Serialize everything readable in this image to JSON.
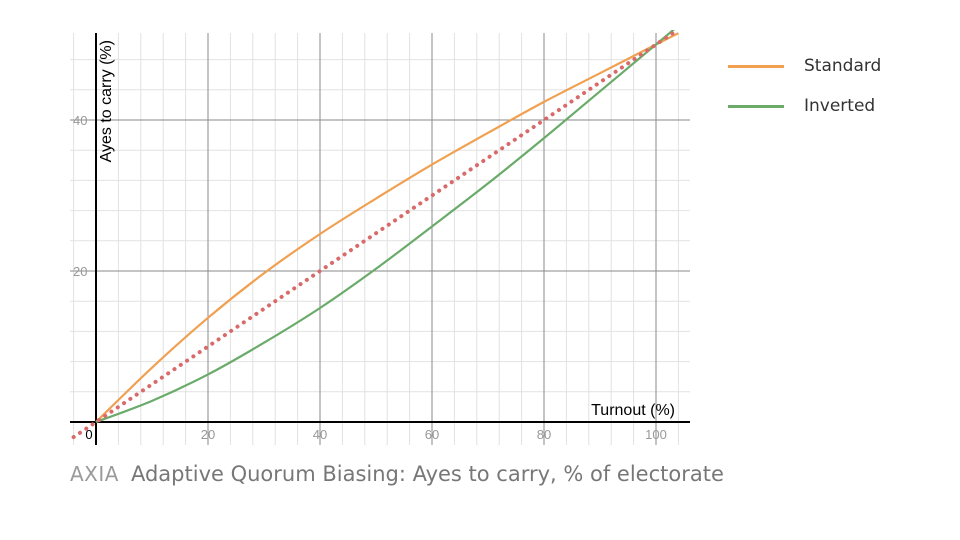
{
  "chart_data": {
    "type": "line",
    "xlabel": "Turnout (%)",
    "ylabel": "Ayes to carry (%)",
    "xlim": [
      -4,
      105
    ],
    "ylim": [
      0,
      50
    ],
    "x_ticks": [
      0,
      20,
      40,
      60,
      80,
      100
    ],
    "y_ticks": [
      20,
      40
    ],
    "x_tick_labels": [
      "0",
      "20",
      "40",
      "60",
      "80",
      "100"
    ],
    "y_tick_labels": [
      "20",
      "40"
    ],
    "grid": true,
    "legend_position": "top-right",
    "series": [
      {
        "name": "Standard",
        "color": "#f0a050",
        "style": "solid",
        "x": [
          0,
          10,
          20,
          30,
          40,
          50,
          60,
          70,
          80,
          90,
          100,
          104
        ],
        "y": [
          0,
          7.2,
          13.8,
          19.7,
          24.9,
          29.6,
          34.1,
          38.3,
          42.4,
          46.2,
          50.0,
          51.5
        ]
      },
      {
        "name": "Inverted",
        "color": "#6aab6a",
        "style": "solid",
        "x": [
          0,
          10,
          20,
          30,
          40,
          50,
          60,
          70,
          80,
          90,
          100,
          104
        ],
        "y": [
          0,
          2.8,
          6.3,
          10.5,
          15.1,
          20.3,
          25.9,
          31.6,
          37.6,
          43.8,
          50.0,
          52.5
        ]
      },
      {
        "name": "",
        "color": "#d96a6a",
        "style": "dotted",
        "x": [
          -4,
          104
        ],
        "y": [
          -2,
          52
        ]
      }
    ]
  },
  "caption": {
    "brand": "AXIA",
    "text": "Adaptive Quorum Biasing: Ayes to carry, % of electorate"
  }
}
